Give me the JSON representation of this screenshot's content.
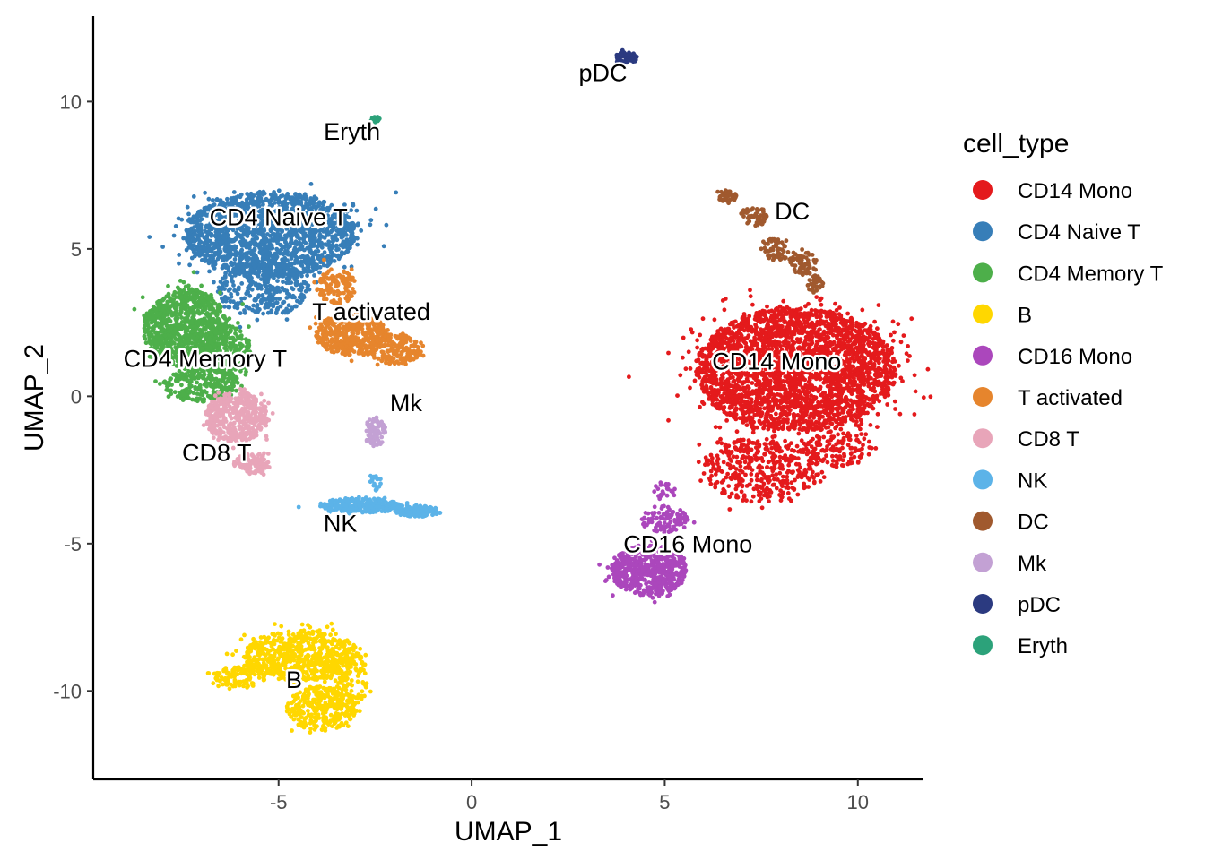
{
  "chart_data": {
    "type": "scatter",
    "title": "",
    "xlabel": "UMAP_1",
    "ylabel": "UMAP_2",
    "xlim": [
      -9.8,
      11.7
    ],
    "ylim": [
      -13.0,
      12.9
    ],
    "x_ticks": [
      -5,
      0,
      5,
      10
    ],
    "y_ticks": [
      -10,
      -5,
      0,
      5,
      10
    ],
    "x_tick_labels": [
      "-5",
      "0",
      "5",
      "10"
    ],
    "y_tick_labels": [
      "-10",
      "-5",
      "0",
      "5",
      "10"
    ],
    "grid": false,
    "legend_title": "cell_type",
    "legend_placement": "right",
    "series": [
      {
        "name": "CD14 Mono",
        "color": "#E41A1C",
        "label_pos": [
          7.9,
          0.9
        ],
        "blobs": [
          [
            8.4,
            0.9,
            2.6,
            2.1,
            2900
          ],
          [
            7.5,
            -2.5,
            1.5,
            1.1,
            400
          ],
          [
            9.5,
            -1.8,
            0.9,
            0.6,
            120
          ]
        ]
      },
      {
        "name": "CD4 Naive T",
        "color": "#377EB8",
        "label_pos": [
          -5.0,
          5.8
        ],
        "blobs": [
          [
            -5.2,
            5.5,
            2.2,
            1.45,
            1700
          ],
          [
            -5.4,
            3.6,
            1.2,
            0.9,
            300
          ]
        ]
      },
      {
        "name": "CD4 Memory T",
        "color": "#4DAF4A",
        "label_pos": [
          -6.9,
          1.0
        ],
        "blobs": [
          [
            -7.4,
            2.3,
            1.1,
            1.35,
            1000
          ],
          [
            -7.0,
            0.4,
            1.0,
            0.55,
            250
          ],
          [
            -6.3,
            1.5,
            0.6,
            0.9,
            150
          ]
        ]
      },
      {
        "name": "B",
        "color": "#FFD700",
        "label_pos": [
          -4.6,
          -9.9
        ],
        "blobs": [
          [
            -4.4,
            -8.8,
            1.5,
            0.85,
            650
          ],
          [
            -3.9,
            -10.6,
            0.9,
            0.75,
            300
          ],
          [
            -6.0,
            -9.5,
            0.65,
            0.4,
            120
          ],
          [
            -3.2,
            -9.6,
            0.5,
            1.1,
            120
          ]
        ]
      },
      {
        "name": "CD16 Mono",
        "color": "#AB47BC",
        "label_pos": [
          5.6,
          -5.3
        ],
        "blobs": [
          [
            4.6,
            -5.9,
            1.0,
            0.85,
            650
          ],
          [
            5.0,
            -4.2,
            0.6,
            0.5,
            100
          ],
          [
            5.0,
            -3.2,
            0.3,
            0.3,
            25
          ]
        ]
      },
      {
        "name": "T activated",
        "color": "#E6852D",
        "label_pos": [
          -2.6,
          2.6
        ],
        "blobs": [
          [
            -3.1,
            2.1,
            0.95,
            0.7,
            450
          ],
          [
            -2.0,
            1.6,
            0.7,
            0.5,
            200
          ],
          [
            -3.5,
            3.7,
            0.5,
            0.6,
            120
          ]
        ]
      },
      {
        "name": "CD8 T",
        "color": "#E8A5B9",
        "label_pos": [
          -6.6,
          -2.2
        ],
        "blobs": [
          [
            -6.1,
            -0.7,
            0.8,
            0.85,
            450
          ],
          [
            -5.7,
            -2.3,
            0.5,
            0.35,
            120
          ]
        ]
      },
      {
        "name": "NK",
        "color": "#5CB3E8",
        "label_pos": [
          -3.4,
          -4.6
        ],
        "blobs": [
          [
            -2.9,
            -3.7,
            1.05,
            0.25,
            300
          ],
          [
            -1.4,
            -3.9,
            0.6,
            0.18,
            120
          ],
          [
            -2.5,
            -2.9,
            0.15,
            0.35,
            20
          ]
        ]
      },
      {
        "name": "DC",
        "color": "#A0592E",
        "label_pos": [
          8.3,
          6.0
        ],
        "blobs": [
          [
            6.6,
            6.8,
            0.25,
            0.2,
            40
          ],
          [
            7.3,
            6.1,
            0.35,
            0.35,
            50
          ],
          [
            7.9,
            5.0,
            0.35,
            0.4,
            60
          ],
          [
            8.6,
            4.5,
            0.4,
            0.4,
            60
          ],
          [
            8.9,
            3.8,
            0.2,
            0.3,
            30
          ]
        ]
      },
      {
        "name": "Mk",
        "color": "#C3A1D4",
        "label_pos": [
          -1.7,
          -0.5
        ],
        "blobs": [
          [
            -2.5,
            -1.2,
            0.28,
            0.5,
            90
          ]
        ]
      },
      {
        "name": "pDC",
        "color": "#2B3A80",
        "label_pos": [
          3.4,
          10.7
        ],
        "blobs": [
          [
            4.0,
            11.5,
            0.3,
            0.18,
            70
          ]
        ]
      },
      {
        "name": "Eryth",
        "color": "#2CA27A",
        "label_pos": [
          -3.1,
          8.7
        ],
        "blobs": [
          [
            -2.5,
            9.4,
            0.12,
            0.08,
            30
          ]
        ]
      }
    ]
  }
}
